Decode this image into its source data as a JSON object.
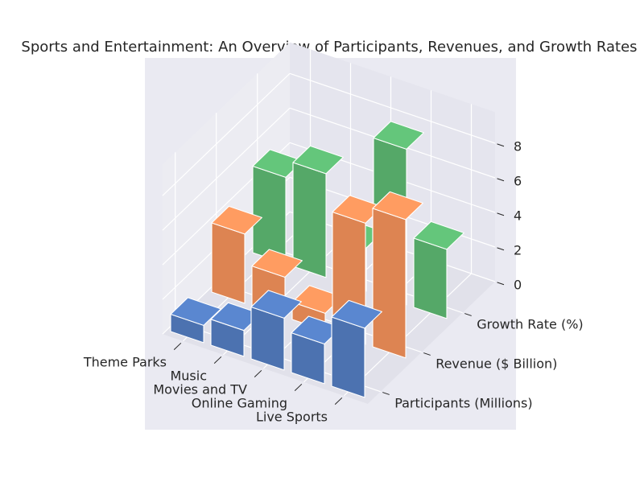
{
  "chart_data": {
    "type": "bar3d",
    "title": "Sports and Entertainment: An Overview of Participants, Revenues, and Growth Rates",
    "categories": [
      "Theme Parks",
      "Music",
      "Movies and TV",
      "Online Gaming",
      "Live Sports"
    ],
    "series": [
      {
        "name": "Participants (Millions)",
        "values": [
          1.0,
          1.5,
          3.0,
          2.3,
          4.0
        ]
      },
      {
        "name": "Revenue ($ Billion)",
        "values": [
          4.0,
          2.3,
          1.0,
          7.0,
          8.0
        ]
      },
      {
        "name": "Growth Rate (%)",
        "values": [
          5.0,
          6.0,
          2.5,
          9.0,
          4.0
        ]
      }
    ],
    "zlim": [
      0,
      9
    ],
    "zticks": [
      "0",
      "2",
      "4",
      "6",
      "8"
    ],
    "grid": true,
    "colors": {
      "Participants (Millions)": "#4c72b0",
      "Revenue ($ Billion)": "#dd8452",
      "Growth Rate (%)": "#55a868",
      "pane_back": "#e5e5ee",
      "pane_side": "#ececf2",
      "pane_floor": "#e1e1ea",
      "axes_bg": "#eaeaf2"
    }
  }
}
